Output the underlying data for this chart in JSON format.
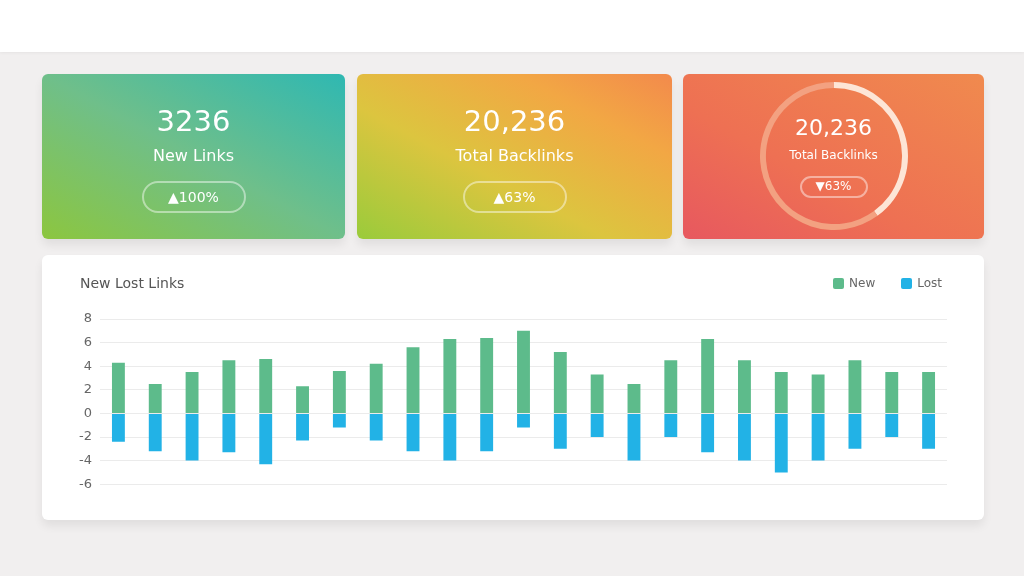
{
  "chart_data": [
    {
      "type": "other",
      "title": "3236",
      "subtitle": "New Links",
      "annotations": [
        "▲100%"
      ]
    },
    {
      "type": "other",
      "title": "20,236",
      "subtitle": "Total Backlinks",
      "annotations": [
        "▲63%"
      ]
    },
    {
      "type": "donut",
      "title": "20,236",
      "subtitle": "Total Backlinks",
      "annotations": [
        "▼63%"
      ],
      "categories": [
        null,
        null
      ],
      "values": [
        40,
        60
      ],
      "colors": [
        "#fde5d6",
        "#f3a181"
      ]
    },
    {
      "type": "bar",
      "title": "New Lost Links",
      "categories": [
        null,
        null,
        null,
        null,
        null,
        null,
        null,
        null,
        null,
        null,
        null,
        null,
        null,
        null,
        null,
        null,
        null,
        null,
        null,
        null,
        null,
        null,
        null
      ],
      "series": [
        {
          "name": "New",
          "color": "#5dbb8b",
          "values": [
            4.3,
            2.5,
            3.5,
            4.5,
            4.6,
            2.3,
            3.6,
            4.2,
            5.6,
            6.3,
            6.4,
            7.0,
            5.2,
            3.3,
            2.5,
            4.5,
            6.3,
            4.5,
            3.5,
            3.3,
            4.5,
            3.5,
            3.5
          ]
        },
        {
          "name": "Lost",
          "color": "#22b2e6",
          "values": [
            -2.4,
            -3.2,
            -4,
            -3.3,
            -4.3,
            -2.3,
            -1.2,
            -2.3,
            -3.2,
            -4,
            -3.2,
            -1.2,
            -3,
            -2,
            -4,
            -2,
            -3.3,
            -4,
            -5,
            -4,
            -3,
            -2,
            -3
          ]
        }
      ],
      "stacked": true,
      "ylim": [
        -6,
        8
      ],
      "yticks": [
        -6,
        -4,
        -2,
        0,
        2,
        4,
        6,
        8
      ],
      "grid": "y",
      "legend": "top right",
      "tick_labels": "y"
    }
  ]
}
